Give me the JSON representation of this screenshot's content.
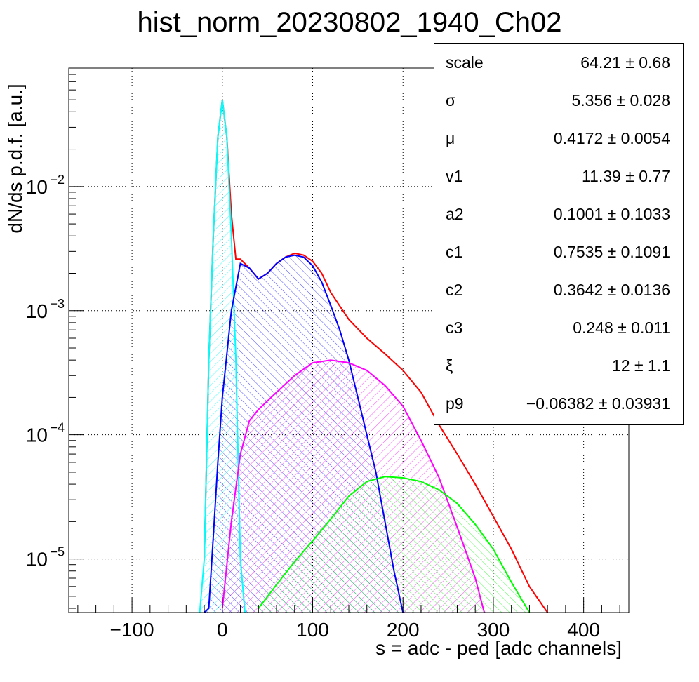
{
  "chart_data": {
    "type": "line",
    "title": "hist_norm_20230802_1940_Ch02",
    "xlabel": "s = adc - ped [adc channels]",
    "ylabel": "dN/ds p.d.f. [a.u.]",
    "xlim": [
      -170,
      450
    ],
    "ylim": [
      3.7e-06,
      0.09
    ],
    "yscale": "log",
    "grid": true,
    "x_ticks": [
      {
        "value": -100,
        "label": "−100"
      },
      {
        "value": 0,
        "label": "0"
      },
      {
        "value": 100,
        "label": "100"
      },
      {
        "value": 200,
        "label": "200"
      },
      {
        "value": 300,
        "label": "300"
      },
      {
        "value": 400,
        "label": "400"
      }
    ],
    "y_ticks": [
      {
        "value": 0.01,
        "base": "10",
        "exp": "−2"
      },
      {
        "value": 0.001,
        "base": "10",
        "exp": "−3"
      },
      {
        "value": 0.0001,
        "base": "10",
        "exp": "−4"
      },
      {
        "value": 1e-05,
        "base": "10",
        "exp": "−5"
      }
    ],
    "series": [
      {
        "color": "#ff0000",
        "x": [
          -20,
          -15,
          -10,
          -5,
          0,
          5,
          10,
          15,
          20,
          30,
          40,
          50,
          60,
          70,
          80,
          90,
          100,
          110,
          120,
          140,
          160,
          180,
          200,
          220,
          240,
          260,
          280,
          300,
          320,
          340,
          360
        ],
        "y": [
          1e-05,
          0.0004,
          0.004,
          0.025,
          0.05,
          0.025,
          0.006,
          0.0026,
          0.0026,
          0.0022,
          0.0018,
          0.002,
          0.0024,
          0.0027,
          0.0029,
          0.0028,
          0.0025,
          0.002,
          0.0014,
          0.00085,
          0.0006,
          0.00045,
          0.00033,
          0.00022,
          0.00012,
          7e-05,
          4e-05,
          2.2e-05,
          1.2e-05,
          6e-06,
          3e-06
        ]
      },
      {
        "color": "#00ffff",
        "x": [
          -25,
          -20,
          -15,
          -10,
          -5,
          0,
          5,
          10,
          15,
          20,
          25
        ],
        "y": [
          1e-06,
          1e-05,
          0.0004,
          0.004,
          0.025,
          0.05,
          0.025,
          0.004,
          0.0004,
          1e-05,
          1e-06
        ]
      },
      {
        "color": "#0000ff",
        "x": [
          -20,
          -15,
          -10,
          -5,
          0,
          10,
          20,
          30,
          40,
          50,
          60,
          70,
          80,
          90,
          100,
          110,
          120,
          130,
          140,
          150,
          160,
          170,
          180,
          190,
          200
        ],
        "y": [
          2e-06,
          4e-06,
          1.5e-05,
          6e-05,
          0.0002,
          0.001,
          0.0024,
          0.0022,
          0.0018,
          0.002,
          0.0024,
          0.0027,
          0.0028,
          0.0027,
          0.0023,
          0.0017,
          0.0011,
          0.0007,
          0.0004,
          0.0002,
          0.0001,
          5e-05,
          2e-05,
          8e-06,
          3.5e-06
        ]
      },
      {
        "color": "#ff00ff",
        "x": [
          0,
          10,
          20,
          30,
          40,
          60,
          80,
          100,
          120,
          140,
          160,
          180,
          200,
          220,
          240,
          260,
          280,
          290
        ],
        "y": [
          4e-06,
          2e-05,
          7e-05,
          0.00013,
          0.00016,
          0.00022,
          0.0003,
          0.00038,
          0.0004,
          0.00038,
          0.00033,
          0.00025,
          0.00017,
          9e-05,
          4.5e-05,
          1.8e-05,
          7e-06,
          3.5e-06
        ]
      },
      {
        "color": "#00ff00",
        "x": [
          40,
          60,
          80,
          100,
          120,
          140,
          160,
          180,
          200,
          220,
          240,
          260,
          280,
          300,
          320,
          340
        ],
        "y": [
          4e-06,
          6.2e-06,
          9.5e-06,
          1.4e-05,
          2.1e-05,
          3.2e-05,
          4.2e-05,
          4.6e-05,
          4.5e-05,
          4.2e-05,
          3.6e-05,
          2.8e-05,
          1.9e-05,
          1.2e-05,
          6.5e-06,
          3.5e-06
        ]
      }
    ]
  },
  "stats_box": {
    "rows": [
      {
        "name": "scale",
        "value": "64.21 ± 0.68"
      },
      {
        "name": "σ",
        "value": "5.356 ± 0.028"
      },
      {
        "name": "μ",
        "value": "0.4172 ± 0.0054"
      },
      {
        "name": "v1",
        "value": "11.39 ± 0.77"
      },
      {
        "name": "a2",
        "value": "0.1001 ± 0.1033"
      },
      {
        "name": "c1",
        "value": "0.7535 ± 0.1091"
      },
      {
        "name": "c2",
        "value": "0.3642 ± 0.0136"
      },
      {
        "name": "c3",
        "value": "0.248 ± 0.011"
      },
      {
        "name": "ξ",
        "value": "12 ± 1.1"
      },
      {
        "name": "p9",
        "value": "−0.06382 ± 0.03931"
      }
    ]
  }
}
